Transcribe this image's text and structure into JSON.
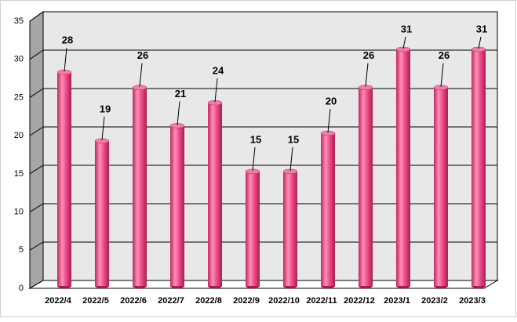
{
  "chart_data": {
    "type": "bar",
    "categories": [
      "2022/4",
      "2022/5",
      "2022/6",
      "2022/7",
      "2022/8",
      "2022/9",
      "2022/10",
      "2022/11",
      "2022/12",
      "2023/1",
      "2023/2",
      "2023/3"
    ],
    "values": [
      28,
      19,
      26,
      21,
      24,
      15,
      15,
      20,
      26,
      31,
      26,
      31
    ],
    "color": "#f0508c",
    "ylim": [
      0,
      35
    ],
    "yticks": [
      0,
      5,
      10,
      15,
      20,
      25,
      30,
      35
    ],
    "grid": true,
    "data_labels": true
  }
}
